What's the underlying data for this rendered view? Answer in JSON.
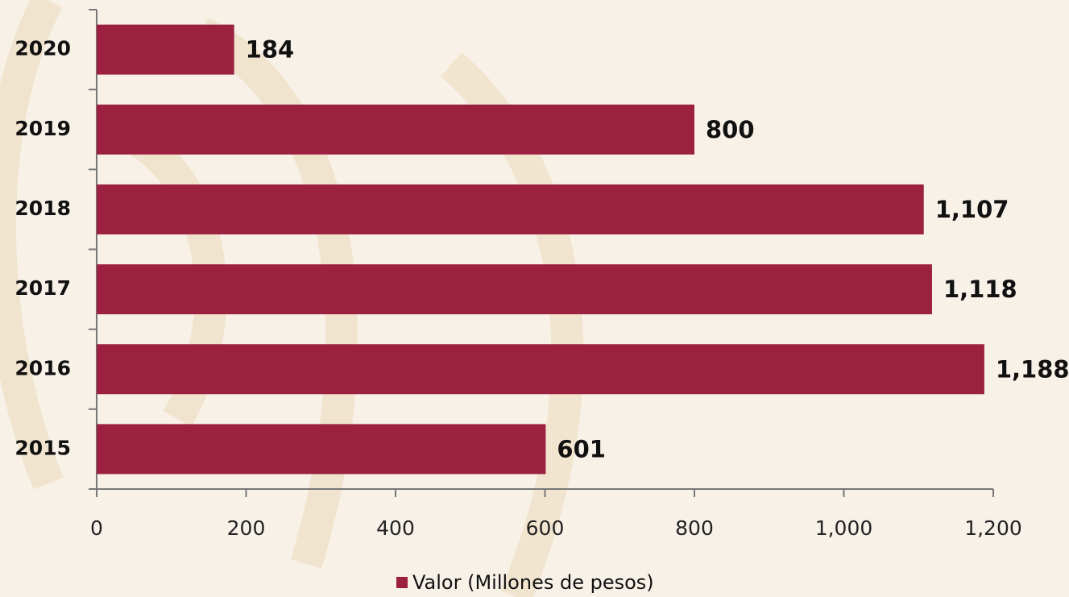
{
  "chart_data": {
    "type": "bar",
    "orientation": "horizontal",
    "categories": [
      "2015",
      "2016",
      "2017",
      "2018",
      "2019",
      "2020"
    ],
    "series": [
      {
        "name": "Valor (Millones de pesos)",
        "color": "#9c2040",
        "values": [
          601,
          1188,
          1118,
          1107,
          800,
          184
        ],
        "value_labels": [
          "601",
          "1,188",
          "1,118",
          "1,107",
          "800",
          "184"
        ]
      }
    ],
    "xlim": [
      0,
      1200
    ],
    "xticks": [
      0,
      200,
      400,
      600,
      800,
      {
        "value": 1000,
        "label": "1,000"
      },
      {
        "value": 1200,
        "label": "1,200"
      }
    ],
    "grid": false,
    "legend": "bottom"
  }
}
